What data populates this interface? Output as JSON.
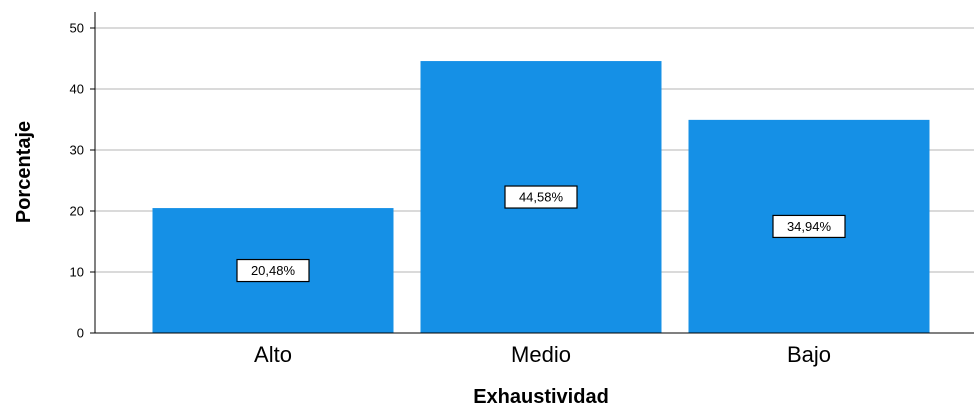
{
  "chart_data": {
    "type": "bar",
    "title": "",
    "xlabel": "Exhaustividad",
    "ylabel": "Porcentaje",
    "categories": [
      "Alto",
      "Medio",
      "Bajo"
    ],
    "values": [
      20.48,
      44.58,
      34.94
    ],
    "data_labels": [
      "20,48%",
      "44,58%",
      "34,94%"
    ],
    "ylim": [
      0,
      50
    ],
    "yticks": [
      0,
      10,
      20,
      30,
      40,
      50
    ],
    "grid": true,
    "legend": "none",
    "bar_color": "#1590e6"
  }
}
